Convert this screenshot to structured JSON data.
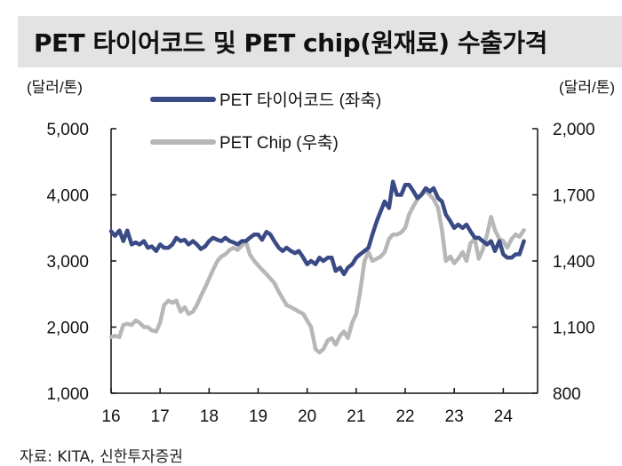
{
  "chart_data": {
    "type": "line",
    "title": "PET 타이어코드 및 PET chip(원재료) 수출가격",
    "left_unit": "(달러/톤)",
    "right_unit": "(달러/톤)",
    "x_tick_labels": [
      "16",
      "17",
      "18",
      "19",
      "20",
      "21",
      "22",
      "23",
      "24"
    ],
    "xlim": [
      16,
      24.7
    ],
    "y_left": {
      "ticks": [
        1000,
        2000,
        3000,
        4000,
        5000
      ],
      "tick_labels": [
        "1,000",
        "2,000",
        "3,000",
        "4,000",
        "5,000"
      ],
      "lim": [
        1000,
        5000
      ]
    },
    "y_right": {
      "ticks": [
        800,
        1100,
        1400,
        1700,
        2000
      ],
      "tick_labels": [
        "800",
        "1,100",
        "1,400",
        "1,700",
        "2,000"
      ],
      "lim": [
        800,
        2000
      ]
    },
    "series": [
      {
        "name": "PET 타이어코드 (좌축)",
        "axis": "left",
        "color": "#3a4a85",
        "x": [
          16.0,
          16.08,
          16.17,
          16.25,
          16.33,
          16.42,
          16.5,
          16.58,
          16.67,
          16.75,
          16.83,
          16.92,
          17.0,
          17.08,
          17.17,
          17.25,
          17.33,
          17.42,
          17.5,
          17.58,
          17.67,
          17.75,
          17.83,
          17.92,
          18.0,
          18.08,
          18.17,
          18.25,
          18.33,
          18.42,
          18.5,
          18.58,
          18.67,
          18.75,
          18.83,
          18.92,
          19.0,
          19.08,
          19.17,
          19.25,
          19.33,
          19.42,
          19.5,
          19.58,
          19.67,
          19.75,
          19.83,
          19.92,
          20.0,
          20.08,
          20.17,
          20.25,
          20.33,
          20.42,
          20.5,
          20.58,
          20.67,
          20.75,
          20.83,
          20.92,
          21.0,
          21.08,
          21.17,
          21.25,
          21.33,
          21.42,
          21.5,
          21.58,
          21.67,
          21.75,
          21.83,
          21.92,
          22.0,
          22.08,
          22.17,
          22.25,
          22.33,
          22.42,
          22.5,
          22.58,
          22.67,
          22.75,
          22.83,
          22.92,
          23.0,
          23.08,
          23.17,
          23.25,
          23.33,
          23.42,
          23.5,
          23.58,
          23.67,
          23.75,
          23.83,
          23.92,
          24.0,
          24.08,
          24.17,
          24.25,
          24.33,
          24.42
        ],
        "values": [
          3450,
          3380,
          3460,
          3300,
          3460,
          3250,
          3280,
          3250,
          3300,
          3200,
          3220,
          3150,
          3250,
          3200,
          3200,
          3250,
          3350,
          3300,
          3320,
          3250,
          3300,
          3250,
          3180,
          3220,
          3300,
          3350,
          3320,
          3300,
          3350,
          3300,
          3280,
          3250,
          3300,
          3300,
          3350,
          3400,
          3400,
          3320,
          3440,
          3400,
          3300,
          3200,
          3150,
          3200,
          3150,
          3120,
          3150,
          3050,
          2950,
          3000,
          2950,
          3050,
          3000,
          3050,
          3050,
          2850,
          2900,
          2800,
          2900,
          2950,
          3050,
          3100,
          3150,
          3200,
          3400,
          3600,
          3750,
          3900,
          3800,
          4200,
          4000,
          4000,
          4150,
          4150,
          4050,
          3950,
          4000,
          4100,
          4050,
          4100,
          3950,
          3900,
          3700,
          3600,
          3500,
          3550,
          3500,
          3550,
          3450,
          3350,
          3350,
          3300,
          3250,
          3300,
          3150,
          3300,
          3100,
          3050,
          3050,
          3100,
          3100,
          3300
        ]
      },
      {
        "name": "PET Chip (우축)",
        "axis": "right",
        "color": "#b7b7b7",
        "x": [
          16.0,
          16.08,
          16.17,
          16.25,
          16.33,
          16.42,
          16.5,
          16.58,
          16.67,
          16.75,
          16.83,
          16.92,
          17.0,
          17.08,
          17.17,
          17.25,
          17.33,
          17.42,
          17.5,
          17.58,
          17.67,
          17.75,
          17.83,
          17.92,
          18.0,
          18.08,
          18.17,
          18.25,
          18.33,
          18.42,
          18.5,
          18.58,
          18.67,
          18.75,
          18.83,
          18.92,
          19.0,
          19.08,
          19.17,
          19.25,
          19.33,
          19.42,
          19.5,
          19.58,
          19.67,
          19.75,
          19.83,
          19.92,
          20.0,
          20.08,
          20.17,
          20.25,
          20.33,
          20.42,
          20.5,
          20.58,
          20.67,
          20.75,
          20.83,
          20.92,
          21.0,
          21.08,
          21.17,
          21.25,
          21.33,
          21.42,
          21.5,
          21.58,
          21.67,
          21.75,
          21.83,
          21.92,
          22.0,
          22.08,
          22.17,
          22.25,
          22.33,
          22.42,
          22.5,
          22.58,
          22.67,
          22.75,
          22.83,
          22.92,
          23.0,
          23.08,
          23.17,
          23.25,
          23.33,
          23.42,
          23.5,
          23.58,
          23.67,
          23.75,
          23.83,
          23.92,
          24.0,
          24.08,
          24.17,
          24.25,
          24.33,
          24.42
        ],
        "values": [
          1055,
          1060,
          1055,
          1110,
          1115,
          1110,
          1130,
          1120,
          1100,
          1100,
          1085,
          1080,
          1120,
          1200,
          1220,
          1210,
          1220,
          1170,
          1190,
          1160,
          1170,
          1200,
          1240,
          1280,
          1320,
          1360,
          1400,
          1420,
          1430,
          1450,
          1460,
          1450,
          1470,
          1490,
          1430,
          1400,
          1380,
          1360,
          1340,
          1320,
          1300,
          1260,
          1230,
          1200,
          1190,
          1180,
          1170,
          1160,
          1130,
          1100,
          1000,
          985,
          1000,
          1040,
          1050,
          1020,
          1060,
          1080,
          1050,
          1120,
          1160,
          1260,
          1400,
          1440,
          1400,
          1410,
          1420,
          1440,
          1500,
          1520,
          1520,
          1530,
          1550,
          1610,
          1650,
          1680,
          1700,
          1720,
          1700,
          1680,
          1640,
          1540,
          1400,
          1420,
          1390,
          1410,
          1440,
          1400,
          1480,
          1500,
          1410,
          1450,
          1520,
          1600,
          1540,
          1500,
          1490,
          1460,
          1500,
          1520,
          1510,
          1540
        ]
      }
    ]
  },
  "source_note": "자료: KITA, 신한투자증권"
}
